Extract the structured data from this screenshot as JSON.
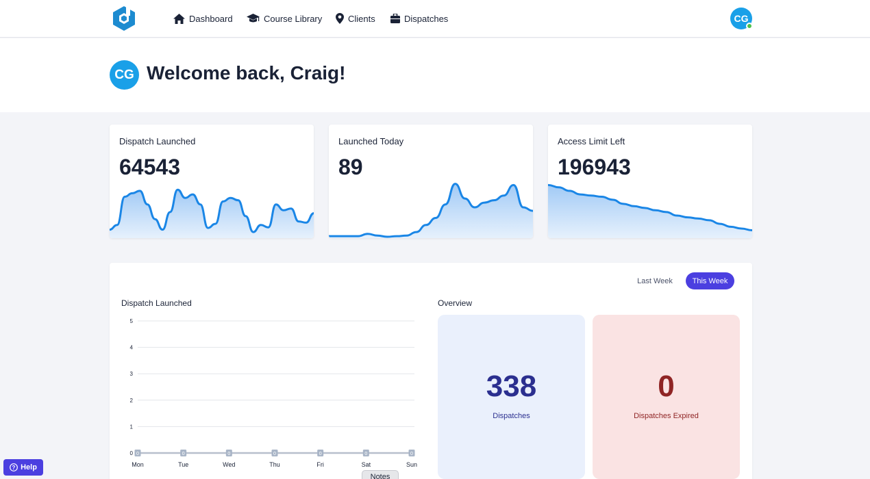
{
  "nav": {
    "items": [
      {
        "label": "Dashboard",
        "icon": "home-icon"
      },
      {
        "label": "Course Library",
        "icon": "graduation-cap-icon"
      },
      {
        "label": "Clients",
        "icon": "map-pin-icon"
      },
      {
        "label": "Dispatches",
        "icon": "briefcase-icon"
      }
    ],
    "avatar_initials": "CG",
    "online_status_color": "#4cc24a"
  },
  "welcome": {
    "avatar_initials": "CG",
    "title": "Welcome back, Craig!"
  },
  "stats": [
    {
      "label": "Dispatch Launched",
      "value": "64543",
      "spark": [
        0.12,
        0.2,
        0.68,
        0.74,
        0.78,
        0.55,
        0.3,
        0.12,
        0.42,
        0.8,
        0.66,
        0.72,
        0.55,
        0.15,
        0.22,
        0.6,
        0.66,
        0.62,
        0.35,
        0.08,
        0.2,
        0.16,
        0.55,
        0.45,
        0.48,
        0.26,
        0.24,
        0.4
      ]
    },
    {
      "label": "Launched Today",
      "value": "89",
      "spark": [
        0.01,
        0.01,
        0.01,
        0.01,
        0.05,
        0.02,
        0.0,
        0.01,
        0.02,
        0.08,
        0.2,
        0.32,
        0.55,
        0.9,
        0.65,
        0.5,
        0.58,
        0.62,
        0.7,
        0.88,
        0.5,
        0.44
      ]
    },
    {
      "label": "Access Limit Left",
      "value": "196943",
      "spark": [
        0.88,
        0.84,
        0.78,
        0.72,
        0.7,
        0.68,
        0.63,
        0.56,
        0.52,
        0.49,
        0.45,
        0.42,
        0.36,
        0.33,
        0.31,
        0.28,
        0.22,
        0.17,
        0.14,
        0.11
      ]
    }
  ],
  "filter_tabs": [
    {
      "label": "Last Week",
      "active": false
    },
    {
      "label": "This Week",
      "active": true
    }
  ],
  "chart_section_title": "Dispatch Launched",
  "overview_title": "Overview",
  "chart_data": {
    "type": "bar",
    "categories": [
      "Mon",
      "Tue",
      "Wed",
      "Thu",
      "Fri",
      "Sat",
      "Sun"
    ],
    "values": [
      0,
      0,
      0,
      0,
      0,
      0,
      0
    ],
    "yticks": [
      0,
      1,
      2,
      3,
      4,
      5
    ],
    "ylim": [
      0,
      5
    ],
    "grid": true,
    "xlabel": "",
    "ylabel": "",
    "title": ""
  },
  "overview": {
    "dispatches": {
      "value": "338",
      "label": "Dispatches"
    },
    "expired": {
      "value": "0",
      "label": "Dispatches Expired"
    }
  },
  "help_label": "Help",
  "notes_label": "Notes",
  "colors": {
    "accent": "#4b3fe0",
    "avatar": "#1aa0e8",
    "spark_line": "#1a86e6",
    "dispatch_box": "#eaf0fc",
    "expired_box": "#fae3e3"
  }
}
